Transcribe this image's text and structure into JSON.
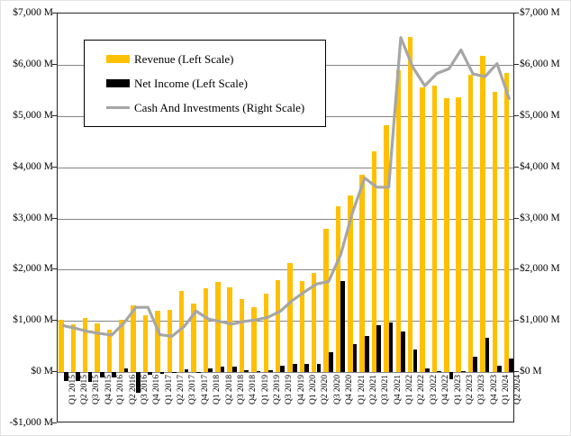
{
  "chart_data": {
    "type": "bar",
    "subtype": "combo-bar-line",
    "title": "",
    "quarters": [
      "Q1 2015",
      "Q2 2015",
      "Q3 2015",
      "Q4 2015",
      "Q1 2016",
      "Q2 2016",
      "Q3 2016",
      "Q4 2016",
      "Q1 2017",
      "Q2 2017",
      "Q3 2017",
      "Q4 2017",
      "Q1 2018",
      "Q2 2018",
      "Q3 2018",
      "Q4 2018",
      "Q1 2019",
      "Q2 2019",
      "Q3 2019",
      "Q4 2019",
      "Q1 2020",
      "Q2 2020",
      "Q3 2020",
      "Q4 2020",
      "Q1 2021",
      "Q2 2021",
      "Q3 2021",
      "Q4 2021",
      "Q1 2022",
      "Q2 2022",
      "Q3 2022",
      "Q4 2022",
      "Q1 2023",
      "Q2 2023",
      "Q3 2023",
      "Q4 2023",
      "Q1 2024",
      "Q2 2024"
    ],
    "series": [
      {
        "name": "Revenue (Left Scale)",
        "type": "bar",
        "axis": "left",
        "color": "#FFC000",
        "values": [
          1030,
          942,
          1061,
          958,
          832,
          1027,
          1307,
          1106,
          1190,
          1215,
          1585,
          1340,
          1647,
          1756,
          1653,
          1419,
          1272,
          1531,
          1801,
          2127,
          1786,
          1932,
          2801,
          3244,
          3445,
          3850,
          4313,
          4826,
          5887,
          6550,
          5565,
          5599,
          5353,
          5359,
          5800,
          6168,
          5473,
          5835
        ]
      },
      {
        "name": "Net Income (Left Scale)",
        "type": "bar",
        "axis": "left",
        "color": "#000000",
        "values": [
          -180,
          -181,
          -197,
          -102,
          -109,
          69,
          -406,
          -51,
          -40,
          -16,
          61,
          -19,
          81,
          116,
          102,
          38,
          16,
          35,
          120,
          170,
          162,
          157,
          390,
          1781,
          555,
          710,
          923,
          974,
          786,
          447,
          66,
          21,
          -139,
          27,
          299,
          667,
          123,
          265
        ]
      },
      {
        "name": "Cash And Investments (Right Scale)",
        "type": "line",
        "axis": "right",
        "color": "#A6A6A6",
        "values": [
          906,
          855,
          795,
          755,
          725,
          957,
          1264,
          1264,
          730,
          700,
          890,
          1190,
          1040,
          985,
          940,
          990,
          1020,
          1075,
          1190,
          1400,
          1565,
          1720,
          1770,
          2290,
          3120,
          3790,
          3610,
          3610,
          6530,
          5950,
          5590,
          5830,
          5920,
          6290,
          5820,
          5770,
          6020,
          5340
        ]
      }
    ],
    "left_axis": {
      "min": -1000,
      "max": 7000,
      "tick_step": 1000,
      "tick_values": [
        7000,
        6000,
        5000,
        4000,
        3000,
        2000,
        1000,
        0,
        -1000
      ],
      "labels": [
        "$7,000 M",
        "$6,000 M",
        "$5,000 M",
        "$4,000 M",
        "$3,000 M",
        "$2,000 M",
        "$1,000 M",
        "$0 M",
        "-$1,000 M"
      ]
    },
    "right_axis": {
      "min": -1000,
      "max": 7000,
      "tick_step": 1000,
      "tick_values": [
        7000,
        6000,
        5000,
        4000,
        3000,
        2000,
        1000,
        0
      ],
      "labels": [
        "$7,000 M",
        "$6,000 M",
        "$5,000 M",
        "$4,000 M",
        "$3,000 M",
        "$2,000 M",
        "$1,000 M",
        "$0 M"
      ]
    },
    "grid": true,
    "legend_position": "top-left-inside"
  },
  "colors": {
    "revenue_bar": "#FFC000",
    "net_income_bar": "#000000",
    "cash_line": "#A6A6A6",
    "gridline": "#858585",
    "plot_border": "#262626",
    "background": "#FFFFFF"
  }
}
